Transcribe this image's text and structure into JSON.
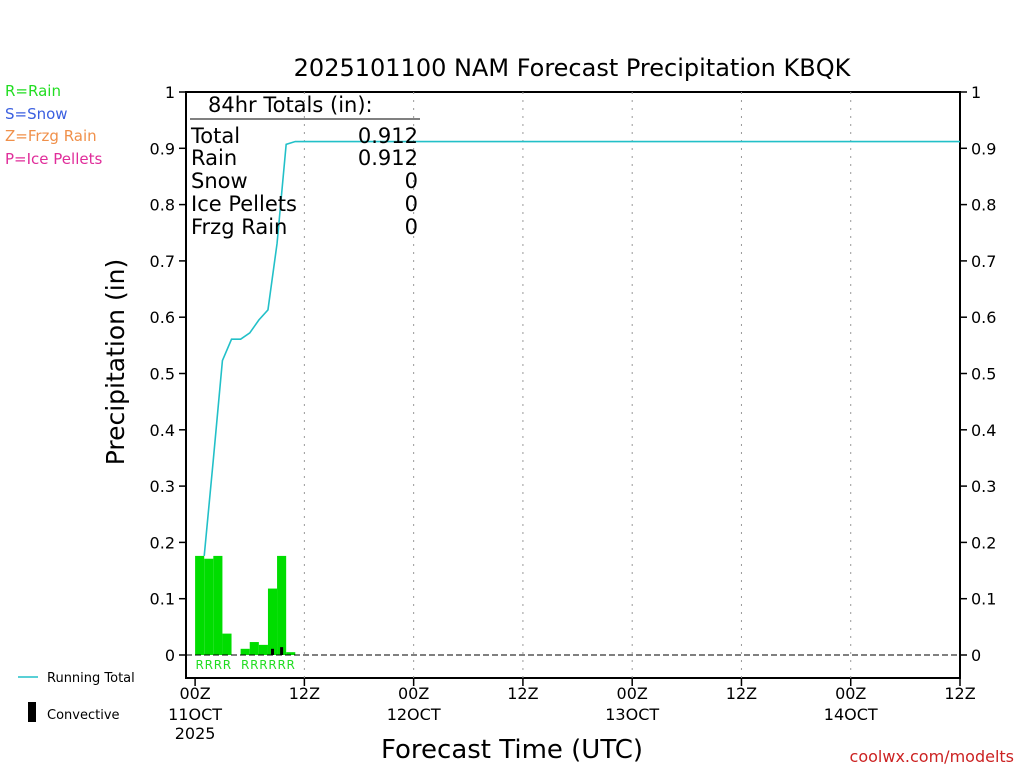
{
  "chart_data": {
    "type": "bar",
    "title": "2025101100 NAM Forecast Precipitation KBQK",
    "xlabel": "Forecast Time (UTC)",
    "ylabel": "Precipitation (in)",
    "ylim": [
      0,
      1
    ],
    "xlim_hours": [
      -1,
      84
    ],
    "y_ticks": [
      "0",
      "0.1",
      "0.2",
      "0.3",
      "0.4",
      "0.5",
      "0.6",
      "0.7",
      "0.8",
      "0.9",
      "1"
    ],
    "x_ticks": [
      {
        "hour": 0,
        "line1": "00Z",
        "line2": "11OCT",
        "line3": "2025"
      },
      {
        "hour": 12,
        "line1": "12Z",
        "line2": "",
        "line3": ""
      },
      {
        "hour": 24,
        "line1": "00Z",
        "line2": "12OCT",
        "line3": ""
      },
      {
        "hour": 36,
        "line1": "12Z",
        "line2": "",
        "line3": ""
      },
      {
        "hour": 48,
        "line1": "00Z",
        "line2": "13OCT",
        "line3": ""
      },
      {
        "hour": 60,
        "line1": "12Z",
        "line2": "",
        "line3": ""
      },
      {
        "hour": 72,
        "line1": "00Z",
        "line2": "14OCT",
        "line3": ""
      },
      {
        "hour": 84,
        "line1": "12Z",
        "line2": "",
        "line3": ""
      }
    ],
    "bars": [
      {
        "hour": 1,
        "value": 0.176,
        "convective": 0,
        "type": "R"
      },
      {
        "hour": 2,
        "value": 0.171,
        "convective": 0,
        "type": "R"
      },
      {
        "hour": 3,
        "value": 0.176,
        "convective": 0,
        "type": "R"
      },
      {
        "hour": 4,
        "value": 0.038,
        "convective": 0,
        "type": "R"
      },
      {
        "hour": 5,
        "value": 0.0,
        "convective": 0,
        "type": ""
      },
      {
        "hour": 6,
        "value": 0.011,
        "convective": 0,
        "type": "R"
      },
      {
        "hour": 7,
        "value": 0.023,
        "convective": 0,
        "type": "R"
      },
      {
        "hour": 8,
        "value": 0.018,
        "convective": 0,
        "type": "R"
      },
      {
        "hour": 9,
        "value": 0.118,
        "convective": 0.011,
        "type": "R"
      },
      {
        "hour": 10,
        "value": 0.176,
        "convective": 0.014,
        "type": "R"
      },
      {
        "hour": 11,
        "value": 0.005,
        "convective": 0,
        "type": "R"
      }
    ],
    "running_total": {
      "name": "Running Total",
      "x": [
        1,
        2,
        3,
        4,
        5,
        6,
        7,
        8,
        9,
        10,
        11,
        12,
        84
      ],
      "y": [
        0.176,
        0.347,
        0.523,
        0.561,
        0.561,
        0.572,
        0.595,
        0.613,
        0.731,
        0.907,
        0.912,
        0.912,
        0.912
      ]
    },
    "precip_type_label": "R",
    "totals_box": {
      "heading": "84hr Totals (in):",
      "rows": [
        {
          "label": "Total",
          "value": "0.912"
        },
        {
          "label": "Rain",
          "value": "0.912"
        },
        {
          "label": "Snow",
          "value": "0"
        },
        {
          "label": "Ice Pellets",
          "value": "0"
        },
        {
          "label": "Frzg Rain",
          "value": "0"
        }
      ]
    },
    "type_legend": [
      {
        "text": "R=Rain",
        "color": "#22dd22"
      },
      {
        "text": "S=Snow",
        "color": "#3a5fe0"
      },
      {
        "text": "Z=Frzg Rain",
        "color": "#f0904a"
      },
      {
        "text": "P=Ice Pellets",
        "color": "#e02d9a"
      }
    ],
    "series_legend": [
      {
        "name": "Running Total",
        "color": "#22c0c8"
      },
      {
        "name": "Convective",
        "color": "#000000"
      }
    ],
    "credit": "coolwx.com/modelts",
    "colors": {
      "rain_bar": "#00dd00",
      "convective": "#000000",
      "running_total": "#22c0c8",
      "credit": "#cc2222",
      "grid": "#999999"
    }
  }
}
